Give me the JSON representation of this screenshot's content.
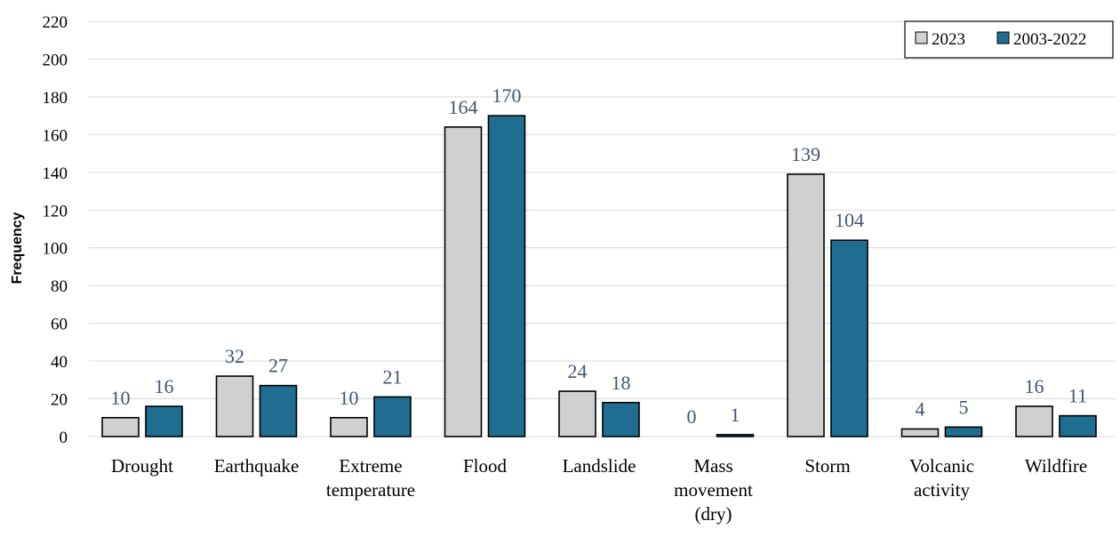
{
  "chart_data": {
    "type": "bar",
    "title": "",
    "xlabel": "",
    "ylabel": "Frequency",
    "ylim": [
      0,
      220
    ],
    "y_ticks": [
      0,
      20,
      40,
      60,
      80,
      100,
      120,
      140,
      160,
      180,
      200,
      220
    ],
    "grid": true,
    "legend_position": "top-right",
    "categories": [
      [
        "Drought"
      ],
      [
        "Earthquake"
      ],
      [
        "Extreme",
        "temperature"
      ],
      [
        "Flood"
      ],
      [
        "Landslide"
      ],
      [
        "Mass",
        "movement",
        "(dry)"
      ],
      [
        "Storm"
      ],
      [
        "Volcanic",
        "activity"
      ],
      [
        "Wildfire"
      ]
    ],
    "series": [
      {
        "name": "2023",
        "color": "#d0d0d0",
        "values": [
          10,
          32,
          10,
          164,
          24,
          0,
          139,
          4,
          16
        ]
      },
      {
        "name": "2003-2022",
        "color": "#1f6e91",
        "values": [
          16,
          27,
          21,
          170,
          18,
          1,
          104,
          5,
          11
        ]
      }
    ],
    "data_label_color": "#44546a"
  }
}
